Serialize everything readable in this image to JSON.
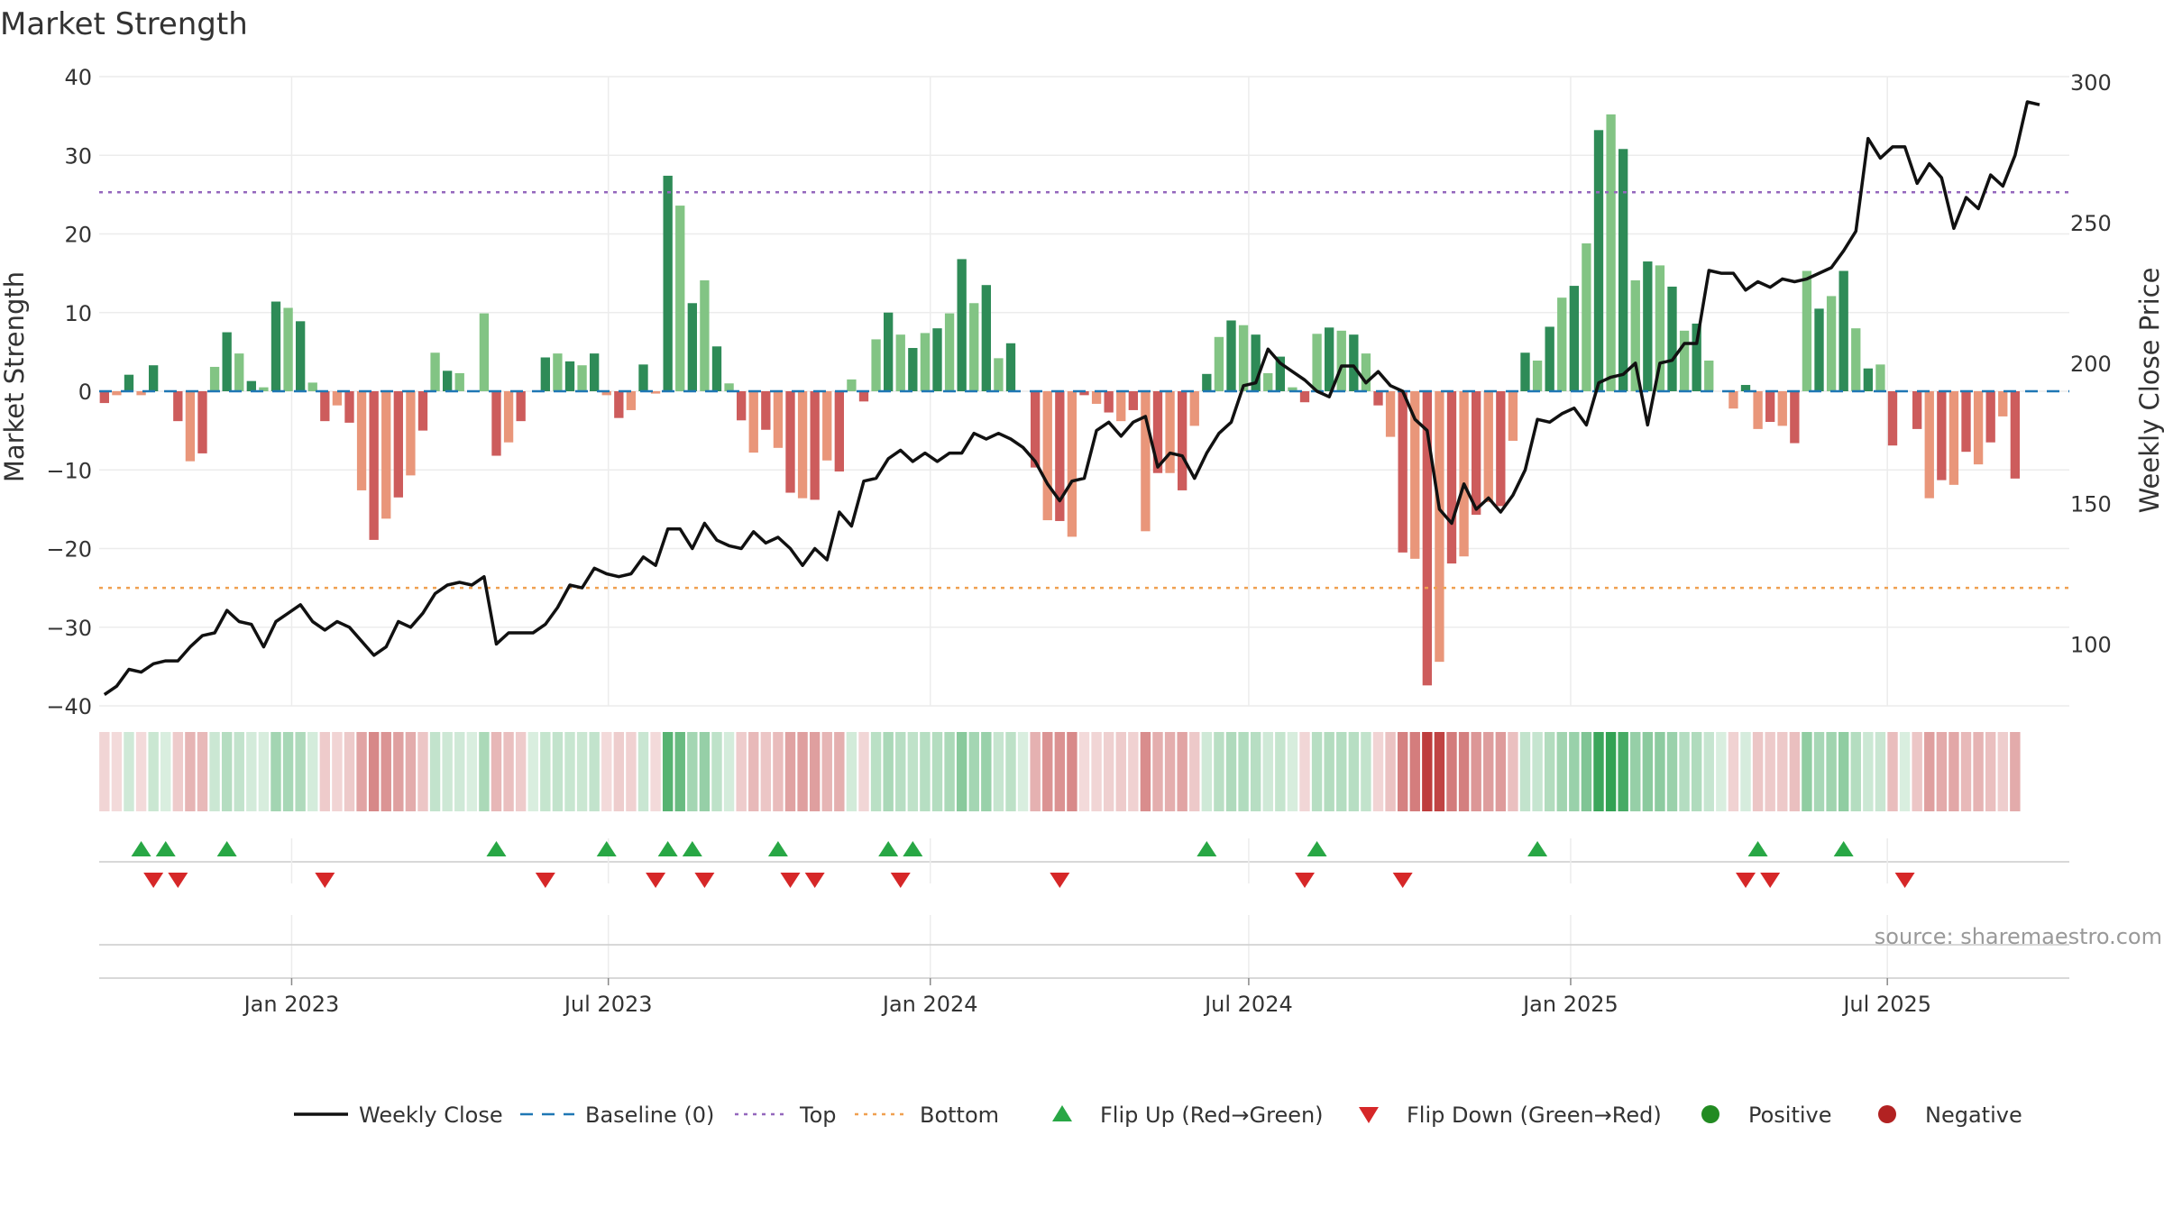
{
  "chart_data": {
    "type": "bar",
    "title": "Market Strength",
    "ylabel": "Market Strength",
    "y2label": "Weekly Close Price",
    "ylim": [
      -40,
      40
    ],
    "y2lim": [
      78,
      302
    ],
    "yticks": [
      40,
      30,
      20,
      10,
      0,
      -10,
      -20,
      -30,
      -40
    ],
    "y2ticks": [
      300,
      250,
      200,
      150,
      100
    ],
    "xlim": [
      "2022-09-13",
      "2025-10-13"
    ],
    "xticks": [
      {
        "date": "2023-01-01",
        "label": "Jan 2023"
      },
      {
        "date": "2023-07-01",
        "label": "Jul 2023"
      },
      {
        "date": "2024-01-01",
        "label": "Jan 2024"
      },
      {
        "date": "2024-07-01",
        "label": "Jul 2024"
      },
      {
        "date": "2025-01-01",
        "label": "Jan 2025"
      },
      {
        "date": "2025-07-01",
        "label": "Jul 2025"
      }
    ],
    "grid": true,
    "legend_position": "bottom",
    "start_date": "2022-09-16",
    "top_line": 25.3,
    "bottom_line": -25.0,
    "strength": [
      -1.5,
      -0.5,
      2.1,
      -0.5,
      3.3,
      0,
      -3.8,
      -8.9,
      -7.9,
      3.1,
      7.5,
      4.8,
      1.3,
      0.5,
      11.4,
      10.6,
      8.9,
      1.1,
      -3.8,
      -1.8,
      -4.0,
      -12.6,
      -18.9,
      -16.2,
      -13.5,
      -10.7,
      -5.0,
      4.9,
      2.6,
      2.3,
      0,
      9.9,
      -8.2,
      -6.5,
      -3.8,
      0,
      4.3,
      4.8,
      3.8,
      3.3,
      4.8,
      -0.5,
      -3.4,
      -2.4,
      3.4,
      -0.3,
      27.4,
      23.6,
      11.2,
      14.1,
      5.7,
      1.0,
      -3.7,
      -7.8,
      -4.9,
      -7.2,
      -12.9,
      -13.6,
      -13.8,
      -8.8,
      -10.2,
      1.5,
      -1.3,
      6.6,
      10.0,
      7.2,
      5.5,
      7.4,
      8.0,
      9.9,
      16.8,
      11.2,
      13.5,
      4.2,
      6.1,
      0,
      -9.7,
      -16.4,
      -16.5,
      -18.5,
      -0.5,
      -1.6,
      -2.7,
      -3.8,
      -2.4,
      -17.8,
      -10.4,
      -10.4,
      -12.6,
      -4.4,
      2.2,
      6.9,
      9.0,
      8.4,
      7.2,
      2.3,
      4.4,
      0.5,
      -1.4,
      7.3,
      8.1,
      7.7,
      7.2,
      4.8,
      -1.8,
      -5.8,
      -20.5,
      -21.3,
      -37.4,
      -34.4,
      -21.9,
      -21.0,
      -15.7,
      -14.1,
      -14.6,
      -6.3,
      4.9,
      3.9,
      8.2,
      11.9,
      13.4,
      18.8,
      33.2,
      35.2,
      30.8,
      14.1,
      16.5,
      16.0,
      13.3,
      7.7,
      8.6,
      3.9,
      0,
      -2.2,
      0.8,
      -4.8,
      -3.9,
      -4.4,
      -6.6,
      15.3,
      10.5,
      12.1,
      15.3,
      8.0,
      2.9,
      3.4,
      -6.9,
      0,
      -4.8,
      -13.6,
      -11.3,
      -11.9,
      -7.7,
      -9.3,
      -6.5,
      -3.2,
      -11.1
    ],
    "weekly_close": [
      82,
      85,
      91,
      90,
      93,
      94,
      94,
      99,
      103,
      104,
      112,
      108,
      107,
      99,
      108,
      111,
      114,
      108,
      105,
      108,
      106,
      101,
      96,
      99,
      108,
      106,
      111,
      118,
      121,
      122,
      121,
      124,
      100,
      104,
      104,
      104,
      107,
      113,
      121,
      120,
      127,
      125,
      124,
      125,
      131,
      128,
      141,
      141,
      134,
      143,
      137,
      135,
      134,
      140,
      136,
      138,
      134,
      128,
      134,
      130,
      147,
      142,
      158,
      159,
      166,
      169,
      165,
      168,
      165,
      168,
      168,
      175,
      173,
      175,
      173,
      170,
      165,
      157,
      151,
      158,
      159,
      176,
      179,
      174,
      179,
      181,
      163,
      168,
      167,
      159,
      168,
      175,
      179,
      192,
      193,
      205,
      200,
      197,
      194,
      190,
      188,
      199,
      199,
      193,
      197,
      192,
      190,
      180,
      176,
      148,
      143,
      157,
      148,
      152,
      147,
      153,
      162,
      180,
      179,
      182,
      184,
      178,
      193,
      195,
      196,
      200,
      178,
      200,
      201,
      207,
      207,
      233,
      232,
      232,
      226,
      229,
      227,
      230,
      229,
      230,
      232,
      234,
      240,
      247,
      280,
      273,
      277,
      277,
      264,
      271,
      266,
      248,
      259,
      255,
      267,
      263,
      274,
      293,
      292
    ],
    "flip_up": [
      "2022-10-07",
      "2022-10-21",
      "2022-11-25",
      "2023-04-28",
      "2023-06-30",
      "2023-08-04",
      "2023-08-18",
      "2023-10-06",
      "2023-12-08",
      "2023-12-22",
      "2024-06-07",
      "2024-08-09",
      "2024-12-13",
      "2025-04-18",
      "2025-06-06"
    ],
    "flip_down": [
      "2022-10-14",
      "2022-10-28",
      "2023-01-20",
      "2023-05-26",
      "2023-07-28",
      "2023-08-25",
      "2023-10-13",
      "2023-10-27",
      "2023-12-15",
      "2024-03-15",
      "2024-08-02",
      "2024-09-27",
      "2025-04-11",
      "2025-04-25",
      "2025-07-11"
    ],
    "source": "source: sharemaestro.com"
  },
  "legend": [
    {
      "label": "Weekly Close",
      "kind": "line"
    },
    {
      "label": "Baseline (0)",
      "kind": "dash"
    },
    {
      "label": "Top",
      "kind": "dot-purple"
    },
    {
      "label": "Bottom",
      "kind": "dot-orange"
    },
    {
      "label": "Flip Up (Red→Green)",
      "kind": "tri-up"
    },
    {
      "label": "Flip Down (Green→Red)",
      "kind": "tri-down"
    },
    {
      "label": "Positive",
      "kind": "circle-green"
    },
    {
      "label": "Negative",
      "kind": "circle-red"
    }
  ],
  "colors": {
    "pos_strong": "#2e8b57",
    "pos_weak": "#82c484",
    "neg_strong": "#cd5c5c",
    "neg_weak": "#e9967a",
    "price_line": "#111111",
    "baseline": "#1f77b4",
    "top": "#9467bd",
    "bottom": "#f0a050",
    "flip_up": "#28a745",
    "flip_down": "#d62728",
    "legend_positive": "#228b22",
    "legend_negative": "#b22222"
  }
}
